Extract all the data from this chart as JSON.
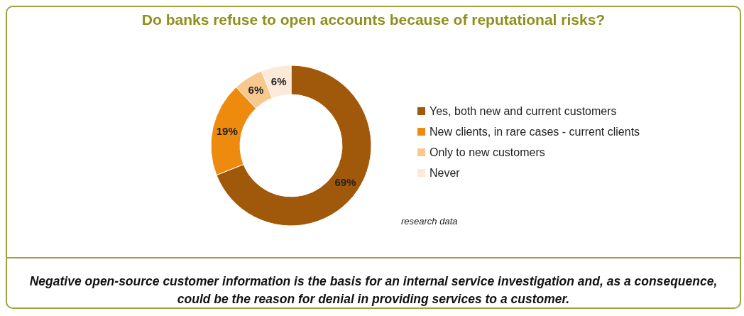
{
  "chart_data": {
    "type": "donut",
    "title": "Do banks refuse to open accounts because of reputational risks?",
    "categories": [
      "Yes, both new and current customers",
      "New clients, in rare cases - current clients",
      "Only to new customers",
      "Never"
    ],
    "values": [
      69,
      19,
      6,
      6
    ],
    "colors": [
      "#a0580a",
      "#ee8a0e",
      "#f8c98e",
      "#fde9d8"
    ],
    "value_labels": [
      "69%",
      "19%",
      "6%",
      "6%"
    ],
    "legend": "right",
    "annotations": [
      "research data",
      "Negative open-source customer information is the basis for an internal service investigation and, as a consequence, could be the reason for denial in providing services to a customer."
    ]
  }
}
